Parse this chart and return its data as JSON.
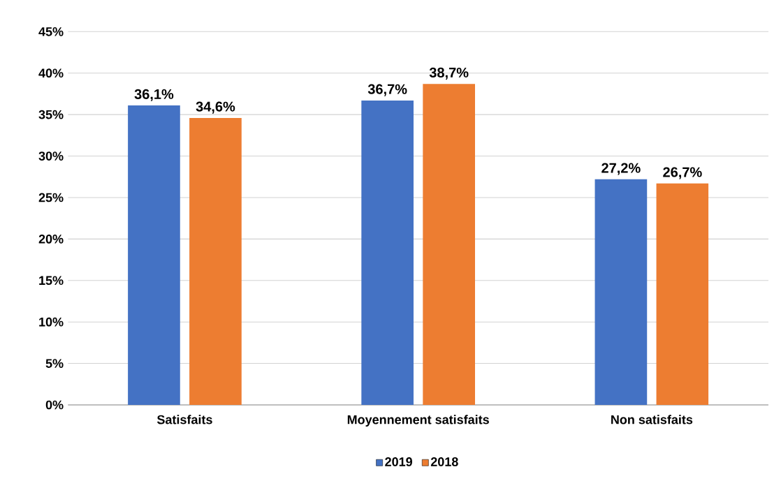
{
  "chart_data": {
    "type": "bar",
    "categories": [
      "Satisfaits",
      "Moyennement satisfaits",
      "Non satisfaits"
    ],
    "series": [
      {
        "name": "2019",
        "color": "#4472c4",
        "values": [
          36.1,
          36.7,
          27.2
        ],
        "value_labels": [
          "36,1%",
          "36,7%",
          "27,2%"
        ]
      },
      {
        "name": "2018",
        "color": "#ed7d31",
        "values": [
          34.6,
          38.7,
          26.7
        ],
        "value_labels": [
          "34,6%",
          "38,7%",
          "26,7%"
        ]
      }
    ],
    "ylim": [
      0,
      45
    ],
    "yticks": [
      {
        "value": 0,
        "label": "0%"
      },
      {
        "value": 5,
        "label": "5%"
      },
      {
        "value": 10,
        "label": "10%"
      },
      {
        "value": 15,
        "label": "15%"
      },
      {
        "value": 20,
        "label": "20%"
      },
      {
        "value": 25,
        "label": "25%"
      },
      {
        "value": 30,
        "label": "30%"
      },
      {
        "value": 35,
        "label": "35%"
      },
      {
        "value": 40,
        "label": "40%"
      },
      {
        "value": 45,
        "label": "45%"
      }
    ],
    "grid": "y",
    "legend": "bottom"
  }
}
